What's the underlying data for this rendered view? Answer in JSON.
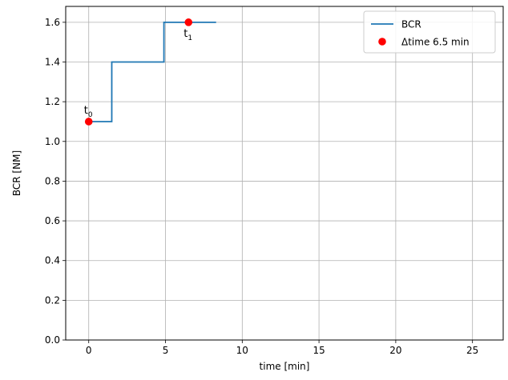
{
  "chart_data": {
    "type": "line",
    "xlabel": "time [min]",
    "ylabel": "BCR [NM]",
    "xlim": [
      -1.5,
      27
    ],
    "ylim": [
      0,
      1.68
    ],
    "xticks": [
      0,
      5,
      10,
      15,
      20,
      25
    ],
    "yticks": [
      0.0,
      0.2,
      0.4,
      0.6,
      0.8,
      1.0,
      1.2,
      1.4,
      1.6
    ],
    "grid": true,
    "legend_position": "top-right",
    "series": [
      {
        "name": "BCR",
        "kind": "step",
        "color": "#1f77b4",
        "x": [
          0,
          1.5,
          1.5,
          4.9,
          4.9,
          8.3
        ],
        "y": [
          1.1,
          1.1,
          1.4,
          1.4,
          1.6,
          1.6
        ]
      },
      {
        "name": "Δtime 6.5 min",
        "kind": "scatter",
        "color": "#ff0000",
        "x": [
          0,
          6.5
        ],
        "y": [
          1.1,
          1.6
        ]
      }
    ],
    "annotations": [
      {
        "base": "t",
        "sub": "0",
        "x": 0,
        "y": 1.1,
        "placement": "above"
      },
      {
        "base": "t",
        "sub": "1",
        "x": 6.5,
        "y": 1.6,
        "placement": "below"
      }
    ]
  }
}
